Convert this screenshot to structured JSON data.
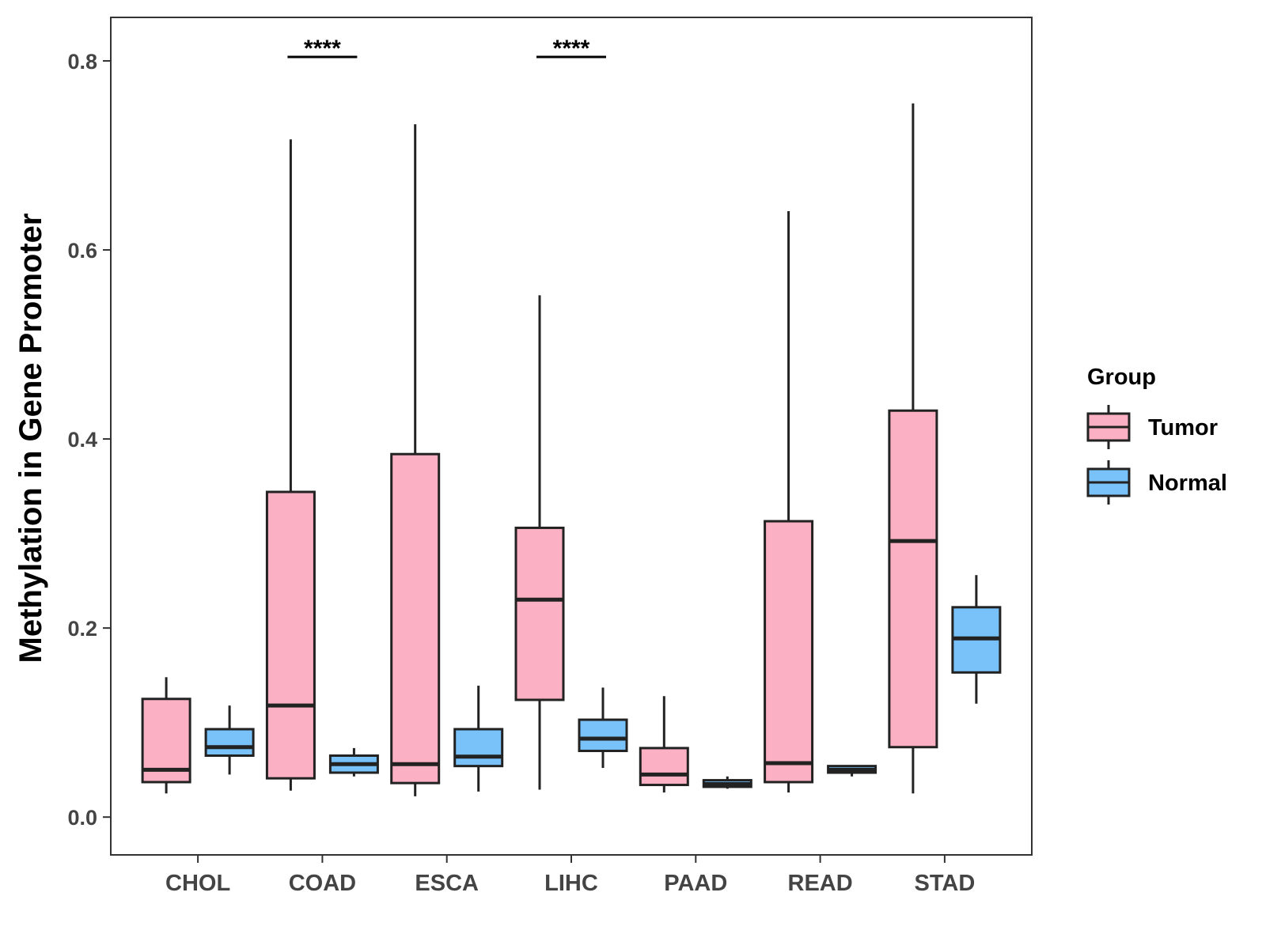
{
  "chart_data": {
    "type": "boxplot",
    "title": "",
    "xlabel": "",
    "ylabel": "Methylation in Gene Promoter",
    "ylim": [
      -0.04,
      0.846
    ],
    "yticks": [
      0.0,
      0.2,
      0.4,
      0.6,
      0.8
    ],
    "ytick_labels": [
      "0.0",
      "0.2",
      "0.4",
      "0.6",
      "0.8"
    ],
    "categories": [
      "CHOL",
      "COAD",
      "ESCA",
      "LIHC",
      "PAAD",
      "READ",
      "STAD"
    ],
    "legend": {
      "title": "Group",
      "position": "right",
      "entries": [
        {
          "name": "Tumor",
          "color": "#FBB0C3"
        },
        {
          "name": "Normal",
          "color": "#78C1F9"
        }
      ]
    },
    "series": [
      {
        "name": "Tumor",
        "color": "#FBB0C3",
        "boxes": [
          {
            "category": "CHOL",
            "min": 0.025,
            "q1": 0.037,
            "median": 0.05,
            "q3": 0.125,
            "max": 0.148
          },
          {
            "category": "COAD",
            "min": 0.028,
            "q1": 0.041,
            "median": 0.118,
            "q3": 0.344,
            "max": 0.717
          },
          {
            "category": "ESCA",
            "min": 0.022,
            "q1": 0.036,
            "median": 0.056,
            "q3": 0.384,
            "max": 0.733
          },
          {
            "category": "LIHC",
            "min": 0.029,
            "q1": 0.124,
            "median": 0.23,
            "q3": 0.306,
            "max": 0.552
          },
          {
            "category": "PAAD",
            "min": 0.026,
            "q1": 0.034,
            "median": 0.045,
            "q3": 0.073,
            "max": 0.128
          },
          {
            "category": "READ",
            "min": 0.026,
            "q1": 0.037,
            "median": 0.057,
            "q3": 0.313,
            "max": 0.641
          },
          {
            "category": "STAD",
            "min": 0.025,
            "q1": 0.074,
            "median": 0.292,
            "q3": 0.43,
            "max": 0.755
          }
        ]
      },
      {
        "name": "Normal",
        "color": "#78C1F9",
        "boxes": [
          {
            "category": "CHOL",
            "min": 0.045,
            "q1": 0.065,
            "median": 0.074,
            "q3": 0.093,
            "max": 0.118
          },
          {
            "category": "COAD",
            "min": 0.043,
            "q1": 0.047,
            "median": 0.056,
            "q3": 0.065,
            "max": 0.073
          },
          {
            "category": "ESCA",
            "min": 0.027,
            "q1": 0.054,
            "median": 0.064,
            "q3": 0.093,
            "max": 0.139
          },
          {
            "category": "LIHC",
            "min": 0.052,
            "q1": 0.07,
            "median": 0.083,
            "q3": 0.103,
            "max": 0.137
          },
          {
            "category": "PAAD",
            "min": 0.03,
            "q1": 0.032,
            "median": 0.035,
            "q3": 0.039,
            "max": 0.043
          },
          {
            "category": "READ",
            "min": 0.043,
            "q1": 0.047,
            "median": 0.05,
            "q3": 0.054,
            "max": 0.055
          },
          {
            "category": "STAD",
            "min": 0.12,
            "q1": 0.153,
            "median": 0.189,
            "q3": 0.222,
            "max": 0.256
          }
        ]
      }
    ],
    "annotations": [
      {
        "category": "COAD",
        "text": "****",
        "y": 0.8
      },
      {
        "category": "LIHC",
        "text": "****",
        "y": 0.8
      }
    ]
  }
}
